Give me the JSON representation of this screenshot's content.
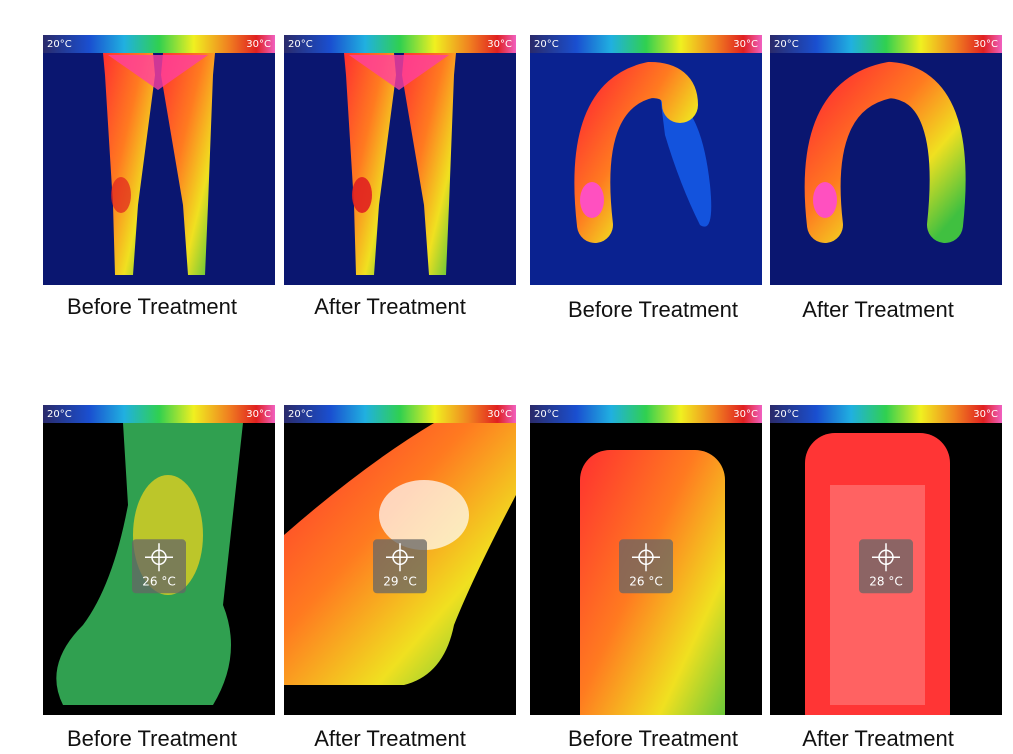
{
  "panels": [
    {
      "scale_min": "20°C",
      "scale_max": "30°C",
      "caption": "Before Treatment"
    },
    {
      "scale_min": "20°C",
      "scale_max": "30°C",
      "caption": "After Treatment"
    },
    {
      "scale_min": "20°C",
      "scale_max": "30°C",
      "caption": "Before Treatment"
    },
    {
      "scale_min": "20°C",
      "scale_max": "30°C",
      "caption": "After Treatment"
    },
    {
      "scale_min": "20°C",
      "scale_max": "30°C",
      "reading": "26 °C",
      "caption": "Before Treatment"
    },
    {
      "scale_min": "20°C",
      "scale_max": "30°C",
      "reading": "29 °C",
      "caption": "After Treatment"
    },
    {
      "scale_min": "20°C",
      "scale_max": "30°C",
      "reading": "26 °C",
      "caption": "Before Treatment"
    },
    {
      "scale_min": "20°C",
      "scale_max": "30°C",
      "reading": "28 °C",
      "caption": "After Treatment"
    }
  ]
}
